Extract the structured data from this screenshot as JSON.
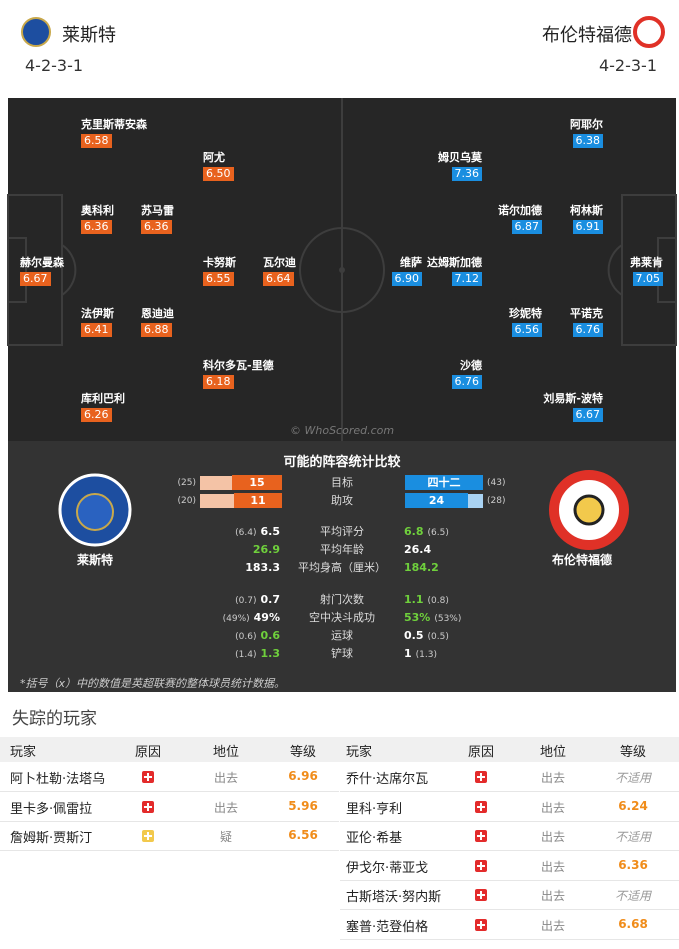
{
  "header": {
    "home": {
      "name": "莱斯特",
      "formation": "4-2-3-1"
    },
    "away": {
      "name": "布伦特福德",
      "formation": "4-2-3-1"
    }
  },
  "pitch": {
    "home_players": [
      {
        "name": "克里斯蒂安森",
        "rating": "6.58"
      },
      {
        "name": "阿尤",
        "rating": "6.50"
      },
      {
        "name": "奥科利",
        "rating": "6.36"
      },
      {
        "name": "苏马雷",
        "rating": "6.36"
      },
      {
        "name": "赫尔曼森",
        "rating": "6.67"
      },
      {
        "name": "卡努斯",
        "rating": "6.55"
      },
      {
        "name": "瓦尔迪",
        "rating": "6.64"
      },
      {
        "name": "法伊斯",
        "rating": "6.41"
      },
      {
        "name": "恩迪迪",
        "rating": "6.88"
      },
      {
        "name": "科尔多瓦-里德",
        "rating": "6.18"
      },
      {
        "name": "库利巴利",
        "rating": "6.26"
      }
    ],
    "away_players": [
      {
        "name": "阿耶尔",
        "rating": "6.38"
      },
      {
        "name": "姆贝乌莫",
        "rating": "7.36"
      },
      {
        "name": "诺尔加德",
        "rating": "6.87"
      },
      {
        "name": "柯林斯",
        "rating": "6.91"
      },
      {
        "name": "弗莱肯",
        "rating": "7.05"
      },
      {
        "name": "维萨",
        "rating": "6.90"
      },
      {
        "name": "达姆斯加德",
        "rating": "7.12"
      },
      {
        "name": "珍妮特",
        "rating": "6.56"
      },
      {
        "name": "平诺克",
        "rating": "6.76"
      },
      {
        "name": "沙德",
        "rating": "6.76"
      },
      {
        "name": "刘易斯-波特",
        "rating": "6.67"
      }
    ],
    "watermark": "© WhoScored.com"
  },
  "comparison": {
    "title": "可能的阵容统计比较",
    "home_team": "莱斯特",
    "away_team": "布伦特福德",
    "rows": [
      {
        "label": "目标",
        "home": "15",
        "home_league": "(25)",
        "away": "四十二",
        "away_league": "(43)"
      },
      {
        "label": "助攻",
        "home": "11",
        "home_league": "(20)",
        "away": "24",
        "away_league": "(28)"
      },
      {
        "label": "平均评分",
        "home": "6.5",
        "home_league": "(6.4)",
        "away": "6.8",
        "away_league": "(6.5)",
        "highlight": "away"
      },
      {
        "label": "平均年龄",
        "home": "26.9",
        "away": "26.4",
        "highlight": "home"
      },
      {
        "label": "平均身高（厘米）",
        "home": "183.3",
        "away": "184.2",
        "highlight": "away"
      },
      {
        "label": "射门次数",
        "home": "0.7",
        "home_league": "(0.7)",
        "away": "1.1",
        "away_league": "(0.8)",
        "highlight": "away"
      },
      {
        "label": "空中决斗成功",
        "home": "49%",
        "home_league": "(49%)",
        "away": "53%",
        "away_league": "(53%)",
        "highlight": "away"
      },
      {
        "label": "运球",
        "home": "0.6",
        "home_league": "(0.6)",
        "away": "0.5",
        "away_league": "(0.5)",
        "highlight": "home"
      },
      {
        "label": "铲球",
        "home": "1.3",
        "home_league": "(1.4)",
        "away": "1",
        "away_league": "(1.3)",
        "highlight": "home"
      }
    ],
    "footnote": "*括号（x）中的数值是英超联赛的整体球员统计数据。"
  },
  "missing": {
    "title": "失踪的玩家",
    "columns": [
      "玩家",
      "原因",
      "地位",
      "等级"
    ],
    "home": [
      {
        "player": "阿卜杜勒·法塔乌",
        "reason_color": "#e32b2b",
        "status": "出去",
        "rating": "6.96"
      },
      {
        "player": "里卡多·佩雷拉",
        "reason_color": "#e32b2b",
        "status": "出去",
        "rating": "5.96"
      },
      {
        "player": "詹姆斯·贾斯汀",
        "reason_color": "#f2c94c",
        "status": "疑",
        "rating": "6.56"
      }
    ],
    "away": [
      {
        "player": "乔什·达席尔瓦",
        "reason_color": "#e32b2b",
        "status": "出去",
        "rating": "不适用"
      },
      {
        "player": "里科·亨利",
        "reason_color": "#e32b2b",
        "status": "出去",
        "rating": "6.24"
      },
      {
        "player": "亚伦·希基",
        "reason_color": "#e32b2b",
        "status": "出去",
        "rating": "不适用"
      },
      {
        "player": "伊戈尔·蒂亚戈",
        "reason_color": "#e32b2b",
        "status": "出去",
        "rating": "6.36"
      },
      {
        "player": "古斯塔沃·努内斯",
        "reason_color": "#e32b2b",
        "status": "出去",
        "rating": "不适用"
      },
      {
        "player": "塞普·范登伯格",
        "reason_color": "#e32b2b",
        "status": "出去",
        "rating": "6.68"
      }
    ]
  }
}
